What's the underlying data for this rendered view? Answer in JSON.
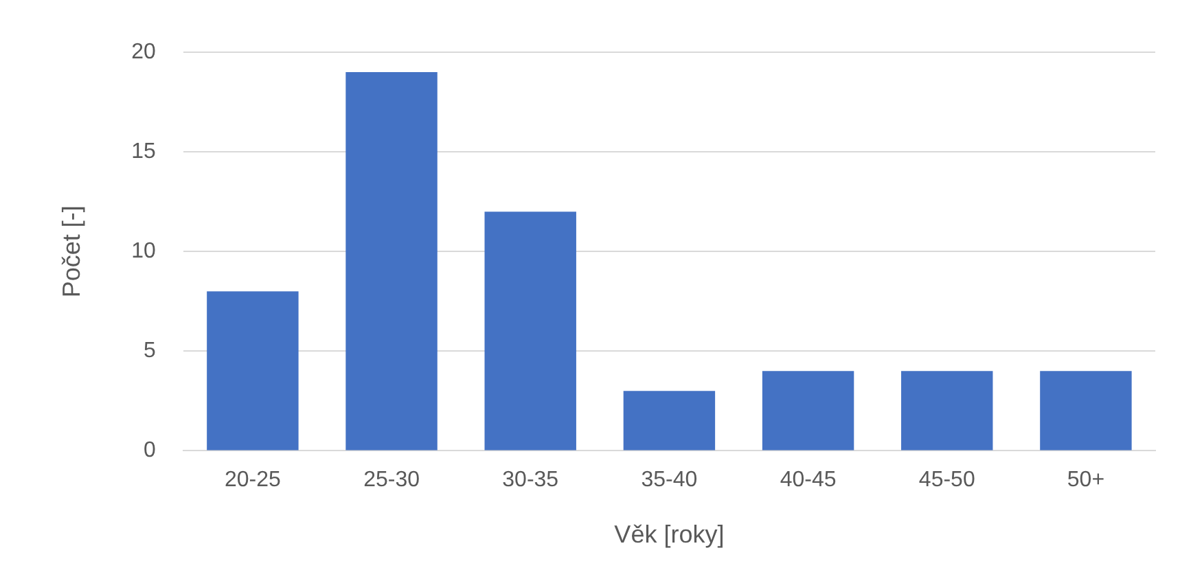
{
  "chart_data": {
    "type": "bar",
    "xlabel": "Věk [roky]",
    "ylabel": "Počet [-]",
    "categories": [
      "20-25",
      "25-30",
      "30-35",
      "35-40",
      "40-45",
      "45-50",
      "50+"
    ],
    "values": [
      8,
      19,
      12,
      3,
      4,
      4,
      4
    ],
    "color": "#4472c4",
    "ylim": [
      0,
      20
    ],
    "yticks": [
      0,
      5,
      10,
      15,
      20
    ],
    "grid": "y",
    "legend": false
  }
}
